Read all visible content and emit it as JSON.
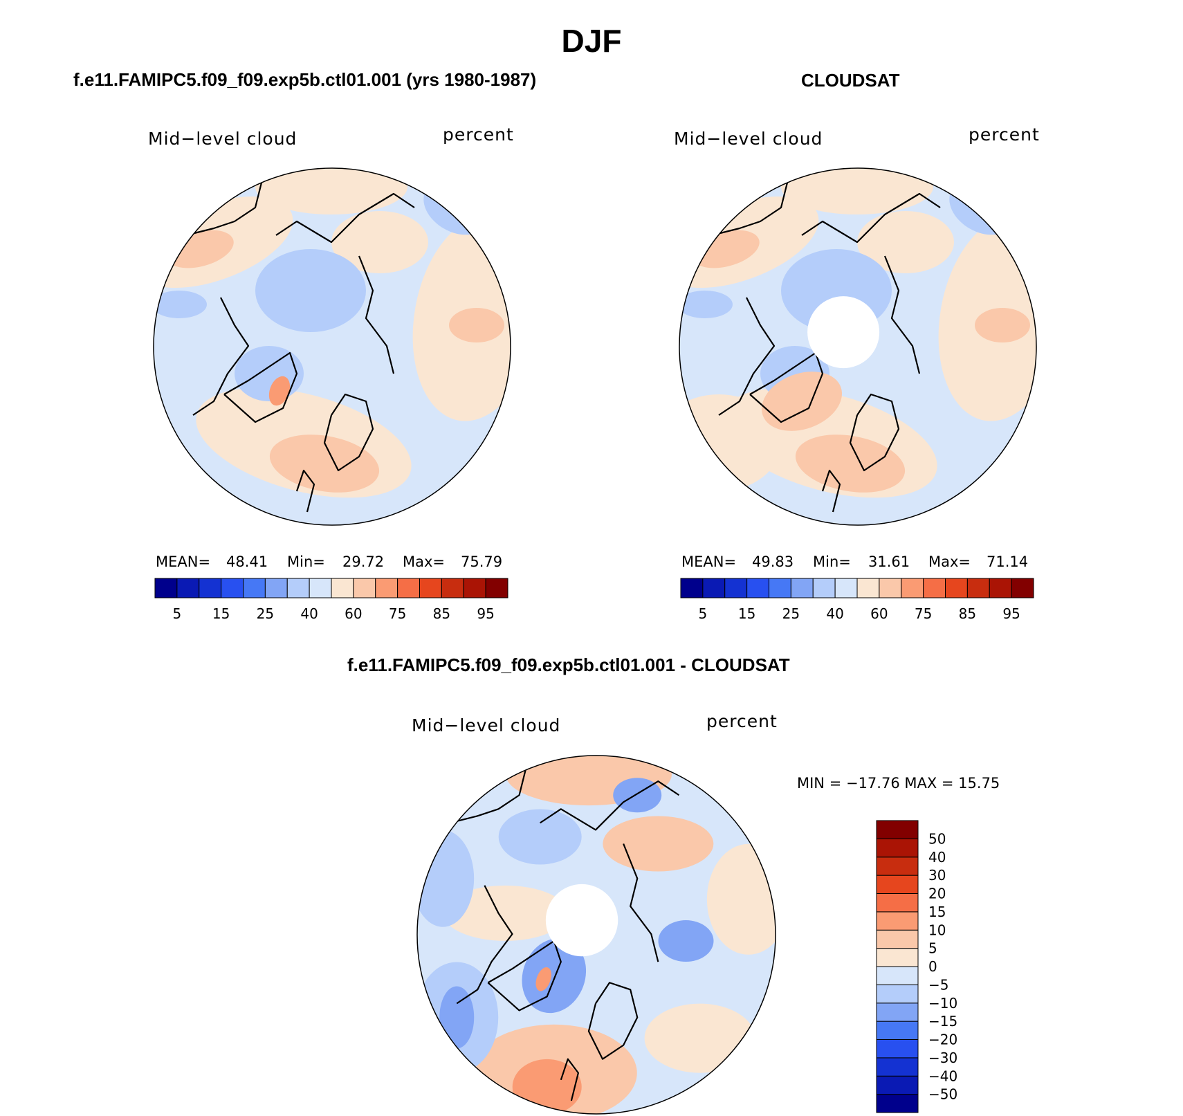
{
  "title": "DJF",
  "panels": [
    {
      "title": "f.e11.FAMIPC5.f09_f09.exp5b.ctl01.001 (yrs 1980-1987)",
      "left_label": "Mid−level cloud",
      "right_label": "percent",
      "stats": {
        "mean_label": "MEAN=",
        "mean": "48.41",
        "min_label": "Min=",
        "min": "29.72",
        "max_label": "Max=",
        "max": "75.79"
      }
    },
    {
      "title": "CLOUDSAT",
      "left_label": "Mid−level cloud",
      "right_label": "percent",
      "stats": {
        "mean_label": "MEAN=",
        "mean": "49.83",
        "min_label": "Min=",
        "min": "31.61",
        "max_label": "Max=",
        "max": "71.14"
      }
    },
    {
      "title": "f.e11.FAMIPC5.f09_f09.exp5b.ctl01.001 - CLOUDSAT",
      "left_label": "Mid−level cloud",
      "right_label": "percent",
      "stats_line": "MIN = −17.76 MAX =   15.75"
    }
  ],
  "horizontal_colorbar": {
    "colors": [
      "#00008c",
      "#0a1ab4",
      "#1432d2",
      "#2850f0",
      "#4678f5",
      "#82a5f5",
      "#b4cdfa",
      "#d7e6fa",
      "#fae6d2",
      "#fac8aa",
      "#fa9b73",
      "#f56e46",
      "#e6461e",
      "#c82d0f",
      "#aa1405",
      "#820000"
    ],
    "tick_labels": [
      "5",
      "15",
      "25",
      "40",
      "60",
      "75",
      "85",
      "95"
    ]
  },
  "vertical_colorbar": {
    "colors": [
      "#00008c",
      "#0a1ab4",
      "#1432d2",
      "#2850f0",
      "#4678f5",
      "#82a5f5",
      "#b4cdfa",
      "#d7e6fa",
      "#fae6d2",
      "#fac8aa",
      "#fa9b73",
      "#f56e46",
      "#e6461e",
      "#c82d0f",
      "#aa1405",
      "#820000"
    ],
    "tick_labels": [
      "50",
      "40",
      "30",
      "20",
      "15",
      "10",
      "5",
      "0",
      "−5",
      "−10",
      "−15",
      "−20",
      "−30",
      "−40",
      "−50"
    ]
  },
  "map_colors": {
    "light_blue": "#d7e6fa",
    "blue": "#b4cdfa",
    "mid_blue": "#82a5f5",
    "strong_blue": "#4678f5",
    "cream": "#fae6d2",
    "peach": "#fac8aa",
    "orange": "#fa9b73",
    "coast": "#000000"
  }
}
